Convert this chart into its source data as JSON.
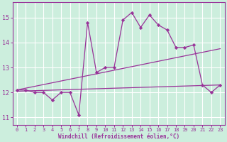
{
  "xlabel": "Windchill (Refroidissement éolien,°C)",
  "bg_color": "#cceedd",
  "line_color": "#993399",
  "grid_color": "#ffffff",
  "x_ticks": [
    0,
    1,
    2,
    3,
    4,
    5,
    6,
    7,
    8,
    9,
    10,
    11,
    12,
    13,
    14,
    15,
    16,
    17,
    18,
    19,
    20,
    21,
    22,
    23
  ],
  "y_ticks": [
    11,
    12,
    13,
    14,
    15
  ],
  "ylim": [
    10.7,
    15.6
  ],
  "xlim": [
    -0.5,
    23.5
  ],
  "line1_x": [
    0,
    1,
    2,
    3,
    4,
    5,
    6,
    7,
    8,
    9,
    10,
    11,
    12,
    13,
    14,
    15,
    16,
    17,
    18,
    19,
    20,
    21,
    22,
    23
  ],
  "line1_y": [
    12.1,
    12.1,
    12.0,
    12.0,
    11.7,
    12.0,
    12.0,
    11.1,
    14.8,
    12.8,
    13.0,
    13.0,
    14.9,
    15.2,
    14.6,
    15.1,
    14.7,
    14.5,
    13.8,
    13.8,
    13.9,
    12.3,
    12.0,
    12.3
  ],
  "trend1_x": [
    0,
    23
  ],
  "trend1_y": [
    12.1,
    13.75
  ],
  "trend2_x": [
    0,
    23
  ],
  "trend2_y": [
    12.05,
    12.3
  ]
}
